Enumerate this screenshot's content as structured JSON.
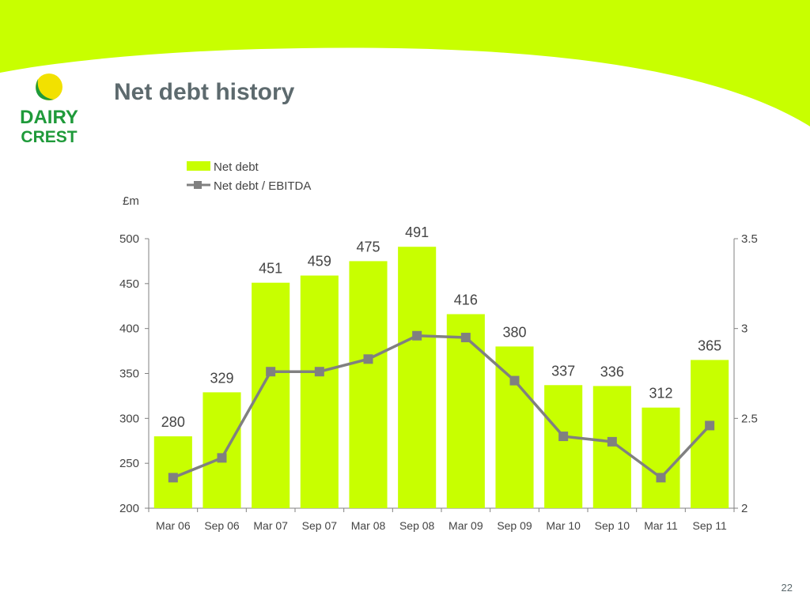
{
  "slide": {
    "title": "Net debt history",
    "page_number": "22",
    "accent_color": "#c8ff00",
    "logo": {
      "line1": "DAIRY",
      "line2": "CREST",
      "green": "#1f9a3a",
      "yellow": "#f2e100"
    }
  },
  "chart_data": {
    "type": "bar",
    "title": "",
    "y_unit_label": "£m",
    "categories": [
      "Mar 06",
      "Sep 06",
      "Mar 07",
      "Sep 07",
      "Mar 08",
      "Sep 08",
      "Mar 09",
      "Sep 09",
      "Mar 10",
      "Sep 10",
      "Mar 11",
      "Sep 11"
    ],
    "series": [
      {
        "name": "Net debt",
        "type": "bar",
        "axis": "left",
        "color": "#c8ff00",
        "values": [
          280,
          329,
          451,
          459,
          475,
          491,
          416,
          380,
          337,
          336,
          312,
          365
        ]
      },
      {
        "name": "Net debt / EBITDA",
        "type": "line",
        "axis": "right",
        "color": "#808080",
        "values": [
          2.17,
          2.28,
          2.76,
          2.76,
          2.83,
          2.96,
          2.95,
          2.71,
          2.4,
          2.37,
          2.17,
          2.46
        ]
      }
    ],
    "y_left": {
      "min": 200,
      "max": 500,
      "ticks": [
        "200",
        "250",
        "300",
        "350",
        "400",
        "450",
        "500"
      ]
    },
    "y_right": {
      "min": 2,
      "max": 3.5,
      "ticks": [
        "2",
        "2.5",
        "3",
        "3.5"
      ]
    },
    "grid": false,
    "legend_position": "top"
  }
}
